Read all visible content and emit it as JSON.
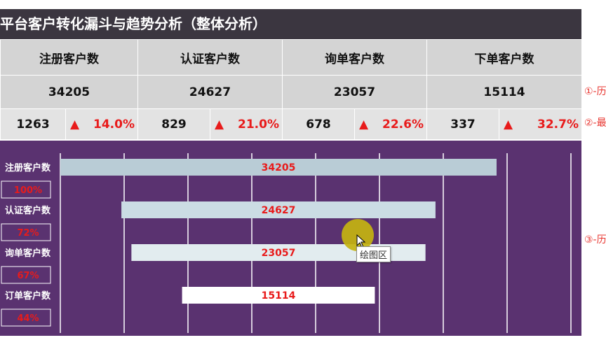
{
  "title": "平台客户转化漏斗与趋势分析（整体分析）",
  "metrics": [
    {
      "name": "注册客户数",
      "total": "34205",
      "delta": "1263",
      "delta_icon": "up-triangle-icon",
      "delta_glyph": "▲",
      "pct": "14.0%"
    },
    {
      "name": "认证客户数",
      "total": "24627",
      "delta": "829",
      "delta_icon": "up-triangle-icon",
      "delta_glyph": "▲",
      "pct": "21.0%"
    },
    {
      "name": "询单客户数",
      "total": "23057",
      "delta": "678",
      "delta_icon": "up-triangle-icon",
      "delta_glyph": "▲",
      "pct": "22.6%"
    },
    {
      "name": "下单客户数",
      "total": "15114",
      "delta": "337",
      "delta_icon": "up-triangle-icon",
      "delta_glyph": "▲",
      "pct": "32.7%"
    }
  ],
  "side_notes": [
    "①-历",
    "②-最",
    "③-历"
  ],
  "colors": {
    "title_bg": "#3b3640",
    "chart_bg": "#5a3270",
    "accent_red": "#e81b1b",
    "bar_colors": [
      "#b9ccd6",
      "#cbdce4",
      "#e2ecef",
      "#ffffff"
    ]
  },
  "chart_data": {
    "type": "bar",
    "orientation": "horizontal-funnel",
    "categories": [
      "注册客户数",
      "认证客户数",
      "询单客户数",
      "订单客户数"
    ],
    "values": [
      34205,
      24627,
      23057,
      15114
    ],
    "data_labels": [
      "34205",
      "24627",
      "23057",
      "15114"
    ],
    "percent_labels": [
      "100%",
      "72%",
      "67%",
      "44%"
    ],
    "grid": true
  },
  "tooltip": {
    "text": "绘图区"
  }
}
